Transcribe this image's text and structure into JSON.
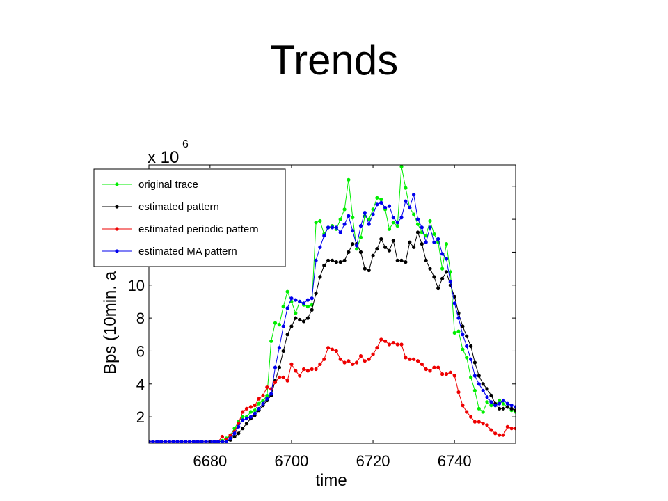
{
  "slide": {
    "title": "Trends"
  },
  "chart_data": {
    "type": "line",
    "title": "",
    "xlabel": "time",
    "ylabel": "Bps (10min. a",
    "y_multiplier": {
      "base": "x 10",
      "exponent": "6"
    },
    "xlim": [
      6665,
      6755
    ],
    "ylim": [
      0.4,
      17.3
    ],
    "xticks": [
      6680,
      6700,
      6720,
      6740
    ],
    "yticks": [
      2,
      4,
      6,
      8,
      10
    ],
    "grid": false,
    "legend_position": "top-left",
    "x": [
      6665,
      6666,
      6667,
      6668,
      6669,
      6670,
      6671,
      6672,
      6673,
      6674,
      6675,
      6676,
      6677,
      6678,
      6679,
      6680,
      6681,
      6682,
      6683,
      6684,
      6685,
      6686,
      6687,
      6688,
      6689,
      6690,
      6691,
      6692,
      6693,
      6694,
      6695,
      6696,
      6697,
      6698,
      6699,
      6700,
      6701,
      6702,
      6703,
      6704,
      6705,
      6706,
      6707,
      6708,
      6709,
      6710,
      6711,
      6712,
      6713,
      6714,
      6715,
      6716,
      6717,
      6718,
      6719,
      6720,
      6721,
      6722,
      6723,
      6724,
      6725,
      6726,
      6727,
      6728,
      6729,
      6730,
      6731,
      6732,
      6733,
      6734,
      6735,
      6736,
      6737,
      6738,
      6739,
      6740,
      6741,
      6742,
      6743,
      6744,
      6745,
      6746,
      6747,
      6748,
      6749,
      6750,
      6751,
      6752,
      6753,
      6754,
      6755
    ],
    "series": [
      {
        "name": "original trace",
        "color": "#00ee00",
        "values": [
          0.5,
          0.5,
          0.5,
          0.5,
          0.5,
          0.5,
          0.5,
          0.5,
          0.5,
          0.5,
          0.5,
          0.5,
          0.5,
          0.5,
          0.5,
          0.5,
          0.5,
          0.5,
          0.55,
          0.7,
          0.9,
          1.3,
          1.7,
          2.0,
          2.0,
          2.3,
          2.4,
          2.8,
          3.0,
          3.3,
          6.6,
          7.7,
          7.6,
          8.7,
          9.6,
          9.0,
          8.3,
          9.0,
          8.8,
          8.7,
          8.8,
          13.8,
          13.9,
          13.1,
          13.5,
          13.6,
          13.4,
          14.0,
          14.6,
          16.4,
          14.1,
          12.2,
          12.9,
          14.2,
          14.0,
          14.6,
          15.3,
          15.2,
          14.6,
          13.4,
          13.8,
          13.6,
          17.2,
          15.9,
          14.7,
          14.3,
          13.7,
          13.2,
          13.0,
          13.9,
          13.1,
          12.6,
          11.0,
          12.5,
          10.8,
          7.1,
          7.2,
          6.1,
          5.6,
          4.4,
          3.6,
          2.5,
          2.3,
          2.9,
          2.7,
          2.7,
          3.0,
          2.8,
          2.6,
          2.4,
          2.3
        ]
      },
      {
        "name": "estimated pattern",
        "color": "#000000",
        "values": [
          0.5,
          0.5,
          0.5,
          0.5,
          0.5,
          0.5,
          0.5,
          0.5,
          0.5,
          0.5,
          0.5,
          0.5,
          0.5,
          0.5,
          0.5,
          0.5,
          0.5,
          0.5,
          0.5,
          0.5,
          0.6,
          0.8,
          1.0,
          1.3,
          1.6,
          1.9,
          2.1,
          2.4,
          2.7,
          3.0,
          3.3,
          4.2,
          5.0,
          6.0,
          7.0,
          7.5,
          8.0,
          7.9,
          7.8,
          8.0,
          8.5,
          9.5,
          10.5,
          11.2,
          11.5,
          11.5,
          11.4,
          11.4,
          11.5,
          12.0,
          12.5,
          12.5,
          12.0,
          11.0,
          10.9,
          11.8,
          12.2,
          12.8,
          12.3,
          12.1,
          12.7,
          11.5,
          11.5,
          11.4,
          12.6,
          12.3,
          13.2,
          12.5,
          11.5,
          11.0,
          10.5,
          9.8,
          10.4,
          10.8,
          10.0,
          9.3,
          8.3,
          7.5,
          6.9,
          6.3,
          5.3,
          4.5,
          4.0,
          3.7,
          3.3,
          2.8,
          2.5,
          2.5,
          2.6,
          2.5,
          2.4
        ]
      },
      {
        "name": "estimated periodic pattern",
        "color": "#ee0000",
        "values": [
          0.5,
          0.5,
          0.5,
          0.5,
          0.5,
          0.5,
          0.5,
          0.5,
          0.5,
          0.5,
          0.5,
          0.5,
          0.5,
          0.5,
          0.5,
          0.5,
          0.5,
          0.5,
          0.8,
          0.6,
          0.9,
          1.1,
          1.6,
          2.3,
          2.5,
          2.6,
          2.7,
          3.1,
          3.3,
          3.8,
          3.7,
          4.1,
          4.4,
          4.4,
          4.2,
          5.2,
          4.8,
          4.5,
          4.9,
          4.8,
          4.9,
          4.9,
          5.2,
          5.5,
          6.2,
          6.1,
          6.0,
          5.5,
          5.3,
          5.4,
          5.2,
          5.3,
          5.7,
          5.4,
          5.5,
          5.8,
          6.2,
          6.7,
          6.6,
          6.4,
          6.5,
          6.4,
          6.4,
          5.6,
          5.5,
          5.5,
          5.4,
          5.2,
          4.9,
          4.8,
          5.0,
          5.0,
          4.6,
          4.6,
          4.7,
          4.5,
          3.5,
          2.7,
          2.3,
          2.0,
          1.7,
          1.7,
          1.6,
          1.5,
          1.2,
          1.0,
          0.9,
          0.9,
          1.4,
          1.3,
          1.3
        ]
      },
      {
        "name": "estimated MA pattern",
        "color": "#0000ee",
        "values": [
          0.5,
          0.5,
          0.5,
          0.5,
          0.5,
          0.5,
          0.5,
          0.5,
          0.5,
          0.5,
          0.5,
          0.5,
          0.5,
          0.5,
          0.5,
          0.5,
          0.5,
          0.5,
          0.5,
          0.5,
          0.7,
          1.0,
          1.4,
          1.8,
          1.9,
          2.0,
          2.2,
          2.5,
          2.8,
          3.1,
          3.4,
          5.0,
          6.2,
          7.5,
          8.6,
          9.2,
          9.1,
          9.0,
          8.9,
          9.1,
          9.2,
          11.5,
          12.3,
          13.0,
          13.5,
          13.5,
          13.5,
          13.2,
          13.7,
          14.2,
          13.3,
          12.4,
          13.6,
          14.4,
          13.7,
          14.3,
          14.9,
          15.0,
          14.7,
          14.8,
          14.1,
          13.8,
          14.1,
          15.1,
          14.7,
          15.5,
          14.0,
          13.5,
          12.6,
          13.5,
          12.6,
          12.8,
          11.9,
          11.6,
          10.2,
          8.9,
          8.0,
          7.0,
          6.3,
          5.5,
          4.5,
          4.0,
          3.6,
          3.2,
          2.9,
          2.7,
          2.8,
          3.0,
          2.8,
          2.7,
          2.6
        ]
      }
    ]
  }
}
